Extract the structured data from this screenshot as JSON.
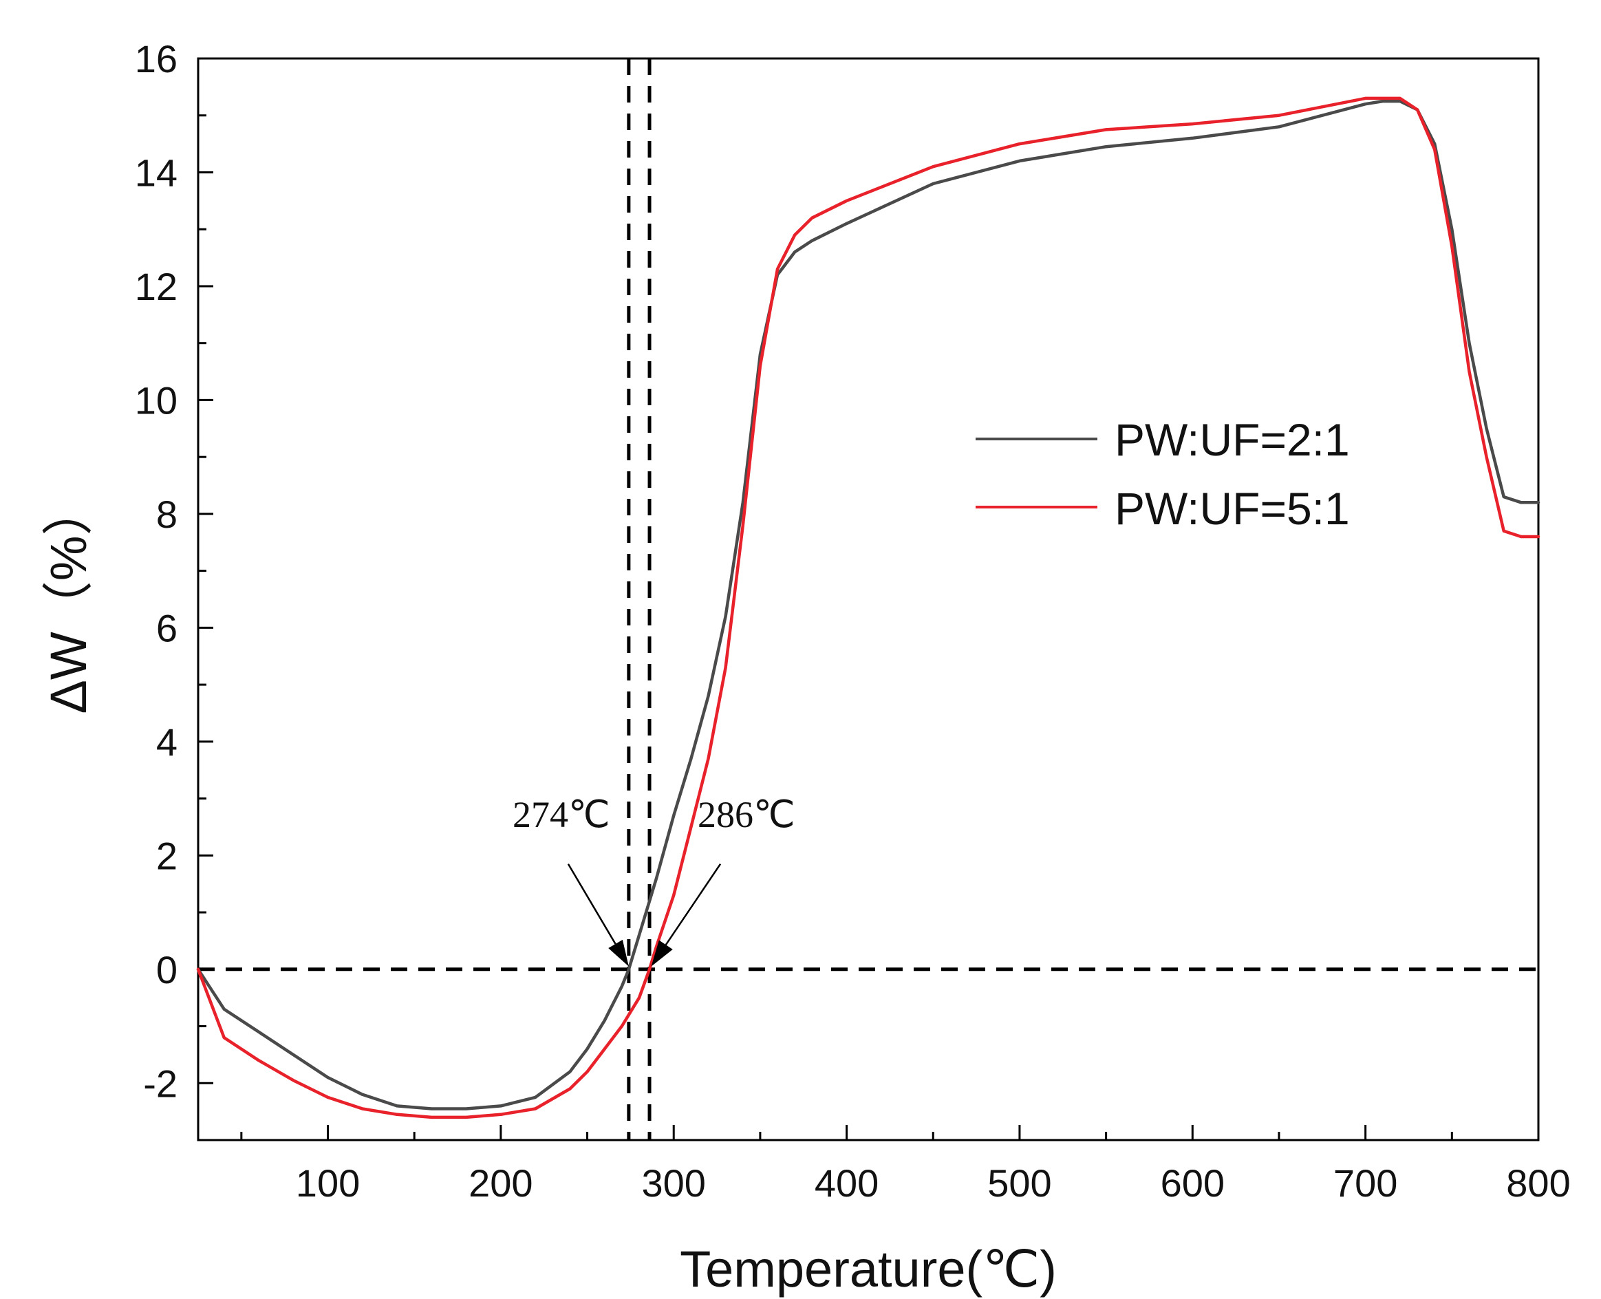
{
  "chart_data": {
    "type": "line",
    "title": "",
    "xlabel": "Temperature(℃)",
    "ylabel": "ΔW（%）",
    "xlim": [
      25,
      800
    ],
    "ylim": [
      -3,
      16
    ],
    "x_ticks": [
      100,
      200,
      300,
      400,
      500,
      600,
      700,
      800
    ],
    "y_ticks": [
      -2,
      0,
      2,
      4,
      6,
      8,
      10,
      12,
      14,
      16
    ],
    "grid": false,
    "legend": "right",
    "series": [
      {
        "name": "PW:UF=2:1",
        "color": "#4a4a4a",
        "x": [
          25,
          40,
          60,
          80,
          100,
          120,
          140,
          160,
          180,
          200,
          220,
          240,
          250,
          260,
          270,
          274,
          280,
          290,
          300,
          310,
          320,
          330,
          340,
          350,
          360,
          370,
          380,
          400,
          450,
          500,
          550,
          600,
          650,
          700,
          710,
          720,
          730,
          740,
          750,
          760,
          770,
          780,
          790,
          800
        ],
        "y": [
          0,
          -0.7,
          -1.1,
          -1.5,
          -1.9,
          -2.2,
          -2.4,
          -2.45,
          -2.45,
          -2.4,
          -2.25,
          -1.8,
          -1.4,
          -0.9,
          -0.3,
          0,
          0.6,
          1.6,
          2.7,
          3.7,
          4.8,
          6.2,
          8.2,
          10.8,
          12.2,
          12.6,
          12.8,
          13.1,
          13.8,
          14.2,
          14.45,
          14.6,
          14.8,
          15.2,
          15.25,
          15.25,
          15.1,
          14.5,
          13.0,
          11.0,
          9.5,
          8.3,
          8.2,
          8.2
        ]
      },
      {
        "name": "PW:UF=5:1",
        "color": "#e8212a",
        "x": [
          25,
          40,
          60,
          80,
          100,
          120,
          140,
          160,
          180,
          200,
          220,
          240,
          250,
          260,
          270,
          280,
          286,
          290,
          300,
          310,
          320,
          330,
          340,
          350,
          360,
          370,
          380,
          400,
          450,
          500,
          550,
          600,
          650,
          700,
          710,
          720,
          730,
          740,
          750,
          760,
          770,
          780,
          790,
          800
        ],
        "y": [
          0,
          -1.2,
          -1.6,
          -1.95,
          -2.25,
          -2.45,
          -2.55,
          -2.6,
          -2.6,
          -2.55,
          -2.45,
          -2.1,
          -1.8,
          -1.4,
          -1.0,
          -0.5,
          0,
          0.4,
          1.3,
          2.5,
          3.7,
          5.3,
          7.8,
          10.6,
          12.3,
          12.9,
          13.2,
          13.5,
          14.1,
          14.5,
          14.75,
          14.85,
          15.0,
          15.3,
          15.3,
          15.3,
          15.1,
          14.4,
          12.7,
          10.5,
          9.0,
          7.7,
          7.6,
          7.6
        ]
      }
    ],
    "reference_lines": [
      {
        "orientation": "horizontal",
        "value": 0
      },
      {
        "orientation": "vertical",
        "value": 274
      },
      {
        "orientation": "vertical",
        "value": 286
      }
    ],
    "annotations": [
      {
        "text": "274℃",
        "text_anchor": [
          235,
          2.5
        ],
        "arrow_from": [
          239,
          1.85
        ],
        "arrow_to": [
          274,
          0.05
        ]
      },
      {
        "text": "286℃",
        "text_anchor": [
          342,
          2.5
        ],
        "arrow_from": [
          327,
          1.85
        ],
        "arrow_to": [
          287,
          0.05
        ]
      }
    ]
  }
}
